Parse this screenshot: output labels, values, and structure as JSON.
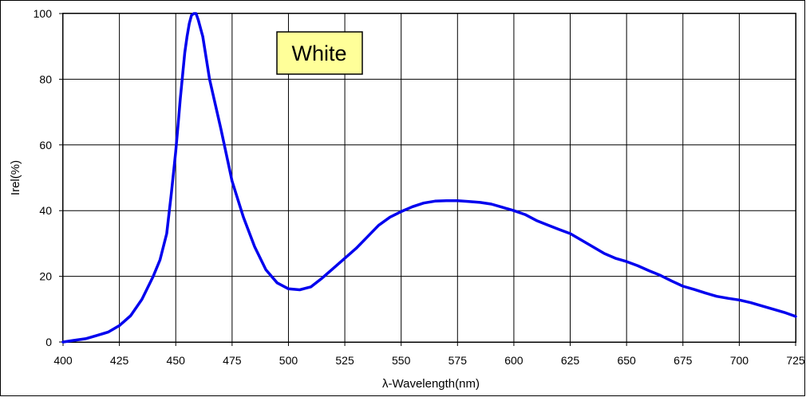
{
  "chart_data": {
    "type": "line",
    "title": "",
    "xlabel": "λ-Wavelength(nm)",
    "ylabel": "Irel(%)",
    "xlim": [
      400,
      725
    ],
    "ylim": [
      0,
      100
    ],
    "x_ticks": [
      "400",
      "425",
      "450",
      "475",
      "500",
      "525",
      "550",
      "575",
      "600",
      "625",
      "650",
      "675",
      "700",
      "725"
    ],
    "y_ticks": [
      "0",
      "20",
      "40",
      "60",
      "80",
      "100"
    ],
    "grid": true,
    "legend": "none",
    "annotation": "White",
    "annotation_color": "#ffff99",
    "line_color": "#0000ee",
    "series": [
      {
        "values": [
          [
            400,
            0
          ],
          [
            405,
            0.5
          ],
          [
            410,
            1
          ],
          [
            415,
            2
          ],
          [
            420,
            3
          ],
          [
            425,
            5
          ],
          [
            430,
            8
          ],
          [
            435,
            13
          ],
          [
            440,
            20
          ],
          [
            443,
            25
          ],
          [
            446,
            33
          ],
          [
            448,
            45
          ],
          [
            450,
            58
          ],
          [
            451,
            66
          ],
          [
            452,
            74
          ],
          [
            453,
            81
          ],
          [
            454,
            88
          ],
          [
            455,
            93
          ],
          [
            456,
            97
          ],
          [
            457,
            99.5
          ],
          [
            458,
            100
          ],
          [
            459,
            100
          ],
          [
            460,
            98
          ],
          [
            462,
            93
          ],
          [
            465,
            80
          ],
          [
            470,
            65
          ],
          [
            475,
            49
          ],
          [
            480,
            38
          ],
          [
            485,
            29
          ],
          [
            490,
            22
          ],
          [
            495,
            18
          ],
          [
            500,
            16.2
          ],
          [
            505,
            15.9
          ],
          [
            510,
            16.8
          ],
          [
            515,
            19.5
          ],
          [
            520,
            22.5
          ],
          [
            525,
            25.5
          ],
          [
            530,
            28.5
          ],
          [
            535,
            32
          ],
          [
            540,
            35.5
          ],
          [
            545,
            38
          ],
          [
            550,
            39.7
          ],
          [
            555,
            41.2
          ],
          [
            560,
            42.3
          ],
          [
            565,
            42.9
          ],
          [
            570,
            43
          ],
          [
            575,
            43
          ],
          [
            580,
            42.8
          ],
          [
            585,
            42.5
          ],
          [
            590,
            42
          ],
          [
            595,
            41
          ],
          [
            600,
            40
          ],
          [
            605,
            38.8
          ],
          [
            610,
            37
          ],
          [
            615,
            35.6
          ],
          [
            620,
            34.3
          ],
          [
            625,
            33
          ],
          [
            630,
            31
          ],
          [
            635,
            29
          ],
          [
            640,
            27
          ],
          [
            645,
            25.5
          ],
          [
            650,
            24.5
          ],
          [
            655,
            23.2
          ],
          [
            660,
            21.7
          ],
          [
            665,
            20.3
          ],
          [
            670,
            18.6
          ],
          [
            675,
            17
          ],
          [
            680,
            16
          ],
          [
            685,
            14.9
          ],
          [
            690,
            13.9
          ],
          [
            695,
            13.3
          ],
          [
            700,
            12.8
          ],
          [
            705,
            12
          ],
          [
            710,
            11
          ],
          [
            715,
            10
          ],
          [
            720,
            9
          ],
          [
            725,
            7.8
          ]
        ]
      }
    ]
  }
}
